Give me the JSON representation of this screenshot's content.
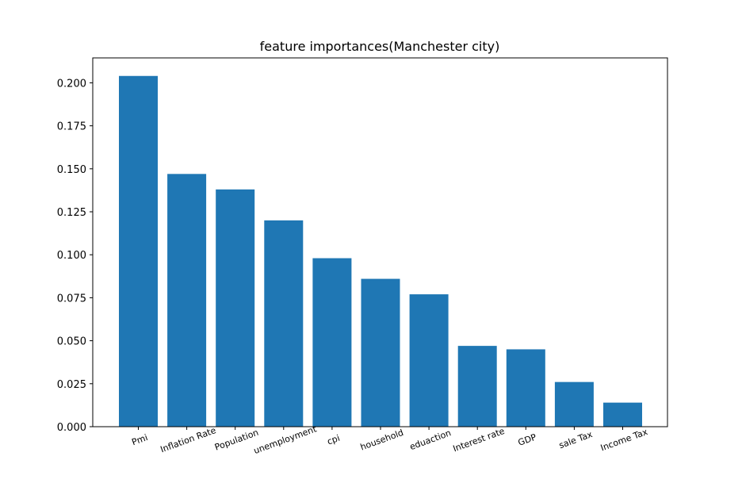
{
  "colors": {
    "bar": "#1f77b4",
    "axis": "#000000",
    "background": "#ffffff"
  },
  "chart_data": {
    "type": "bar",
    "title": "feature importances(Manchester city)",
    "xlabel": "",
    "ylabel": "",
    "categories": [
      "Pmi",
      "Inflation Rate",
      "Population",
      "unemployment",
      "cpi",
      "household",
      "eduaction",
      "Interest rate",
      "GDP",
      "sale Tax",
      "Income Tax"
    ],
    "values": [
      0.204,
      0.147,
      0.138,
      0.12,
      0.098,
      0.086,
      0.077,
      0.047,
      0.045,
      0.026,
      0.014
    ],
    "ylim": [
      0,
      0.2145
    ],
    "yticks": [
      0.0,
      0.025,
      0.05,
      0.075,
      0.1,
      0.125,
      0.15,
      0.175,
      0.2
    ],
    "ytick_labels": [
      "0.000",
      "0.025",
      "0.050",
      "0.075",
      "0.100",
      "0.125",
      "0.150",
      "0.175",
      "0.200"
    ],
    "xtick_rotation_deg": 20,
    "grid": false,
    "legend": "none"
  }
}
